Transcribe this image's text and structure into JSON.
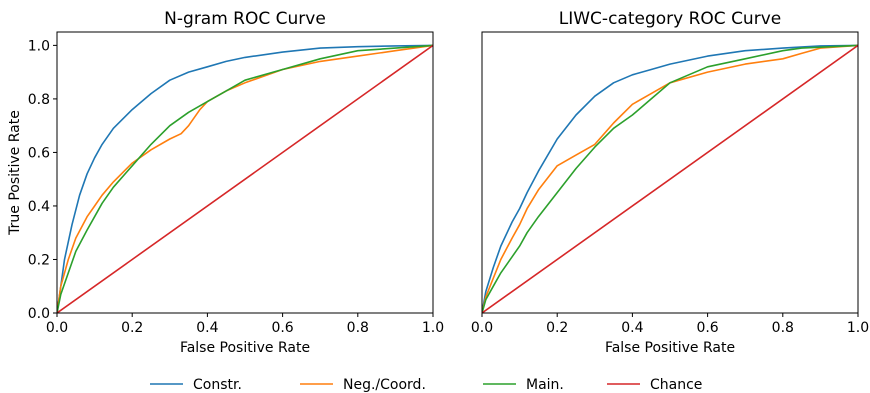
{
  "chart_data": [
    {
      "type": "line",
      "title": "N-gram ROC Curve",
      "xlabel": "False Positive Rate",
      "ylabel": "True Positive Rate",
      "xlim": [
        0,
        1
      ],
      "ylim": [
        0,
        1.05
      ],
      "xticks": [
        "0.0",
        "0.2",
        "0.4",
        "0.6",
        "0.8",
        "1.0"
      ],
      "yticks": [
        "0.0",
        "0.2",
        "0.4",
        "0.6",
        "0.8",
        "1.0"
      ],
      "grid": false,
      "series": [
        {
          "name": "Constr.",
          "color": "#1f77b4",
          "x": [
            0,
            0.01,
            0.02,
            0.04,
            0.06,
            0.08,
            0.1,
            0.12,
            0.15,
            0.2,
            0.25,
            0.3,
            0.35,
            0.4,
            0.45,
            0.5,
            0.6,
            0.7,
            0.8,
            0.9,
            1.0
          ],
          "y": [
            0,
            0.1,
            0.2,
            0.33,
            0.44,
            0.52,
            0.58,
            0.63,
            0.69,
            0.76,
            0.82,
            0.87,
            0.9,
            0.92,
            0.94,
            0.955,
            0.975,
            0.99,
            0.995,
            0.998,
            1.0
          ]
        },
        {
          "name": "Neg./Coord.",
          "color": "#ff7f0e",
          "x": [
            0,
            0.01,
            0.03,
            0.05,
            0.08,
            0.1,
            0.12,
            0.15,
            0.2,
            0.25,
            0.3,
            0.33,
            0.35,
            0.38,
            0.4,
            0.45,
            0.5,
            0.6,
            0.7,
            0.8,
            0.9,
            1.0
          ],
          "y": [
            0,
            0.1,
            0.2,
            0.28,
            0.36,
            0.4,
            0.44,
            0.49,
            0.56,
            0.61,
            0.65,
            0.67,
            0.7,
            0.76,
            0.79,
            0.83,
            0.86,
            0.91,
            0.94,
            0.96,
            0.98,
            1.0
          ]
        },
        {
          "name": "Main.",
          "color": "#2ca02c",
          "x": [
            0,
            0.01,
            0.03,
            0.05,
            0.08,
            0.1,
            0.12,
            0.15,
            0.2,
            0.25,
            0.3,
            0.35,
            0.4,
            0.45,
            0.5,
            0.6,
            0.7,
            0.8,
            0.9,
            1.0
          ],
          "y": [
            0,
            0.07,
            0.15,
            0.23,
            0.31,
            0.36,
            0.41,
            0.47,
            0.55,
            0.63,
            0.7,
            0.75,
            0.79,
            0.83,
            0.87,
            0.91,
            0.95,
            0.98,
            0.99,
            1.0
          ]
        },
        {
          "name": "Chance",
          "color": "#d62728",
          "x": [
            0,
            1
          ],
          "y": [
            0,
            1
          ]
        }
      ]
    },
    {
      "type": "line",
      "title": "LIWC-category ROC Curve",
      "xlabel": "False Positive Rate",
      "ylabel": "",
      "xlim": [
        0,
        1
      ],
      "ylim": [
        0,
        1.05
      ],
      "xticks": [
        "0.0",
        "0.2",
        "0.4",
        "0.6",
        "0.8",
        "1.0"
      ],
      "yticks": [],
      "grid": false,
      "series": [
        {
          "name": "Constr.",
          "color": "#1f77b4",
          "x": [
            0,
            0.01,
            0.03,
            0.05,
            0.08,
            0.1,
            0.12,
            0.15,
            0.2,
            0.25,
            0.3,
            0.35,
            0.4,
            0.45,
            0.5,
            0.6,
            0.7,
            0.8,
            0.9,
            1.0
          ],
          "y": [
            0,
            0.08,
            0.17,
            0.25,
            0.34,
            0.39,
            0.45,
            0.53,
            0.65,
            0.74,
            0.81,
            0.86,
            0.89,
            0.91,
            0.93,
            0.96,
            0.98,
            0.99,
            0.998,
            1.0
          ]
        },
        {
          "name": "Neg./Coord.",
          "color": "#ff7f0e",
          "x": [
            0,
            0.01,
            0.03,
            0.05,
            0.08,
            0.1,
            0.12,
            0.15,
            0.2,
            0.25,
            0.3,
            0.35,
            0.4,
            0.45,
            0.5,
            0.6,
            0.7,
            0.8,
            0.85,
            0.9,
            1.0
          ],
          "y": [
            0,
            0.06,
            0.13,
            0.2,
            0.28,
            0.33,
            0.39,
            0.46,
            0.55,
            0.59,
            0.63,
            0.71,
            0.78,
            0.82,
            0.86,
            0.9,
            0.93,
            0.95,
            0.97,
            0.99,
            1.0
          ]
        },
        {
          "name": "Main.",
          "color": "#2ca02c",
          "x": [
            0,
            0.01,
            0.03,
            0.05,
            0.08,
            0.1,
            0.12,
            0.15,
            0.2,
            0.25,
            0.3,
            0.35,
            0.4,
            0.45,
            0.5,
            0.6,
            0.7,
            0.8,
            0.85,
            1.0
          ],
          "y": [
            0,
            0.05,
            0.1,
            0.15,
            0.21,
            0.25,
            0.3,
            0.36,
            0.45,
            0.54,
            0.62,
            0.69,
            0.74,
            0.8,
            0.86,
            0.92,
            0.95,
            0.98,
            0.99,
            1.0
          ]
        },
        {
          "name": "Chance",
          "color": "#d62728",
          "x": [
            0,
            1
          ],
          "y": [
            0,
            1
          ]
        }
      ]
    }
  ],
  "legend": {
    "placement": "bottom",
    "items": [
      {
        "label": "Constr.",
        "color": "#1f77b4"
      },
      {
        "label": "Neg./Coord.",
        "color": "#ff7f0e"
      },
      {
        "label": "Main.",
        "color": "#2ca02c"
      },
      {
        "label": "Chance",
        "color": "#d62728"
      }
    ]
  }
}
